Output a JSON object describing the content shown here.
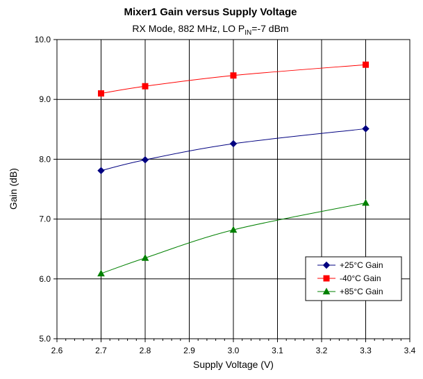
{
  "chart_data": {
    "type": "line",
    "title": "Mixer1 Gain versus Supply Voltage",
    "subtitle": {
      "prefix": "RX Mode, 882 MHz, LO P",
      "subscript": "IN",
      "suffix": "=-7 dBm"
    },
    "xlabel": "Supply Voltage (V)",
    "ylabel": "Gain (dB)",
    "xlim": [
      2.6,
      3.4
    ],
    "ylim": [
      5.0,
      10.0
    ],
    "xticks": [
      "2.6",
      "2.7",
      "2.8",
      "2.9",
      "3.0",
      "3.1",
      "3.2",
      "3.3",
      "3.4"
    ],
    "yticks": [
      "5.0",
      "6.0",
      "7.0",
      "8.0",
      "9.0",
      "10.0"
    ],
    "grid": true,
    "legend_position": "bottom-right",
    "series": [
      {
        "name": "+25°C Gain",
        "color": "#000080",
        "marker": "diamond",
        "x": [
          2.7,
          2.8,
          3.0,
          3.3
        ],
        "y": [
          7.81,
          7.99,
          8.26,
          8.51
        ]
      },
      {
        "name": "-40°C Gain",
        "color": "#ff0000",
        "marker": "square",
        "x": [
          2.7,
          2.8,
          3.0,
          3.3
        ],
        "y": [
          9.1,
          9.22,
          9.4,
          9.58
        ]
      },
      {
        "name": "+85°C Gain",
        "color": "#008000",
        "marker": "triangle",
        "x": [
          2.7,
          2.8,
          3.0,
          3.3
        ],
        "y": [
          6.09,
          6.35,
          6.82,
          7.27
        ]
      }
    ]
  }
}
